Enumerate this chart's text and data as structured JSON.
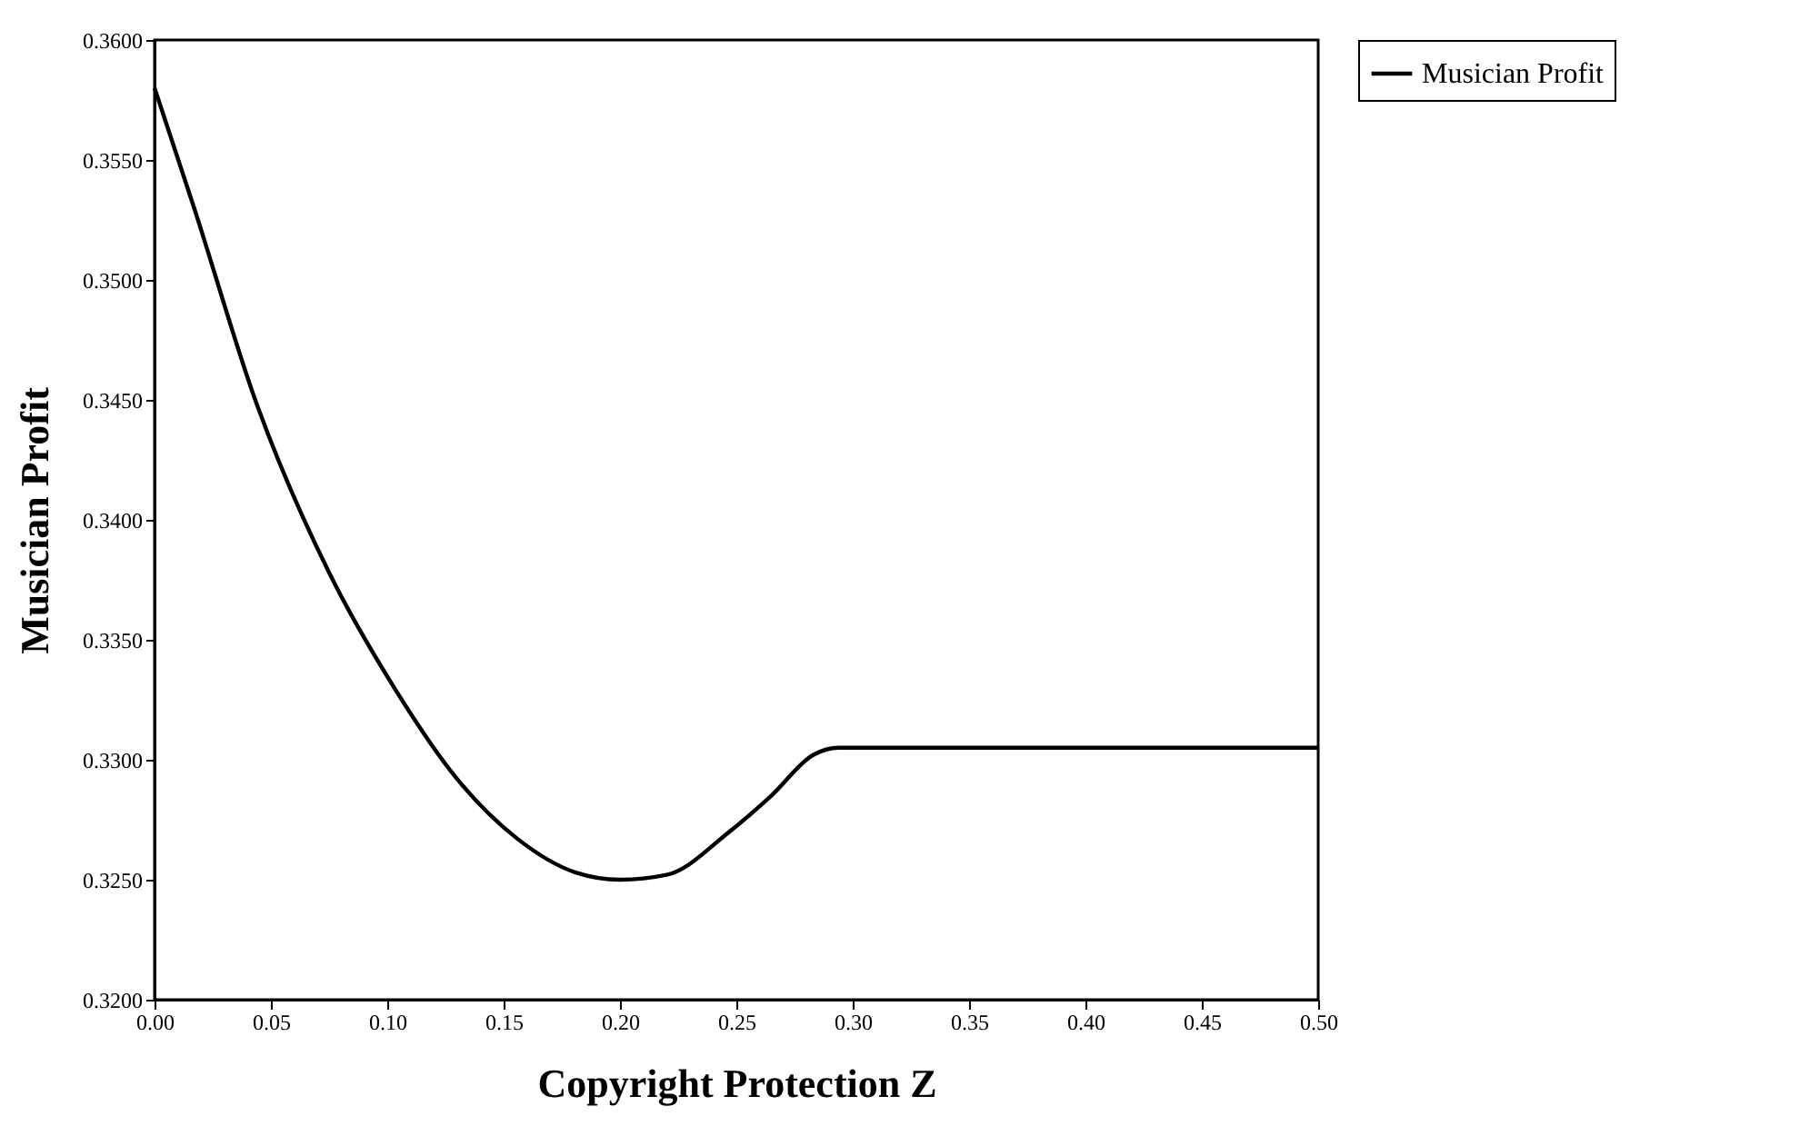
{
  "chart_data": {
    "type": "line",
    "xlabel": "Copyright Protection Z",
    "ylabel": "Musician Profit",
    "series": [
      {
        "name": "Musician Profit",
        "color": "#000000",
        "x": [
          0,
          0.017,
          0.044,
          0.075,
          0.103,
          0.13,
          0.156,
          0.181,
          0.2,
          0.22,
          0.247,
          0.265,
          0.283,
          0.294,
          0.35,
          0.4,
          0.45,
          0.5
        ],
        "values": [
          0.358,
          0.353,
          0.3448,
          0.3378,
          0.333,
          0.3292,
          0.3267,
          0.3253,
          0.325,
          0.3252,
          0.327,
          0.3285,
          0.3302,
          0.3305,
          0.3305,
          0.3305,
          0.3305,
          0.3305
        ]
      }
    ],
    "xlim": [
      0,
      0.5
    ],
    "ylim": [
      0.32,
      0.36
    ],
    "xticks": [
      {
        "value": 0,
        "label": "0.00"
      },
      {
        "value": 0.05,
        "label": "0.05"
      },
      {
        "value": 0.1,
        "label": "0.10"
      },
      {
        "value": 0.15,
        "label": "0.15"
      },
      {
        "value": 0.2,
        "label": "0.20"
      },
      {
        "value": 0.25,
        "label": "0.25"
      },
      {
        "value": 0.3,
        "label": "0.30"
      },
      {
        "value": 0.35,
        "label": "0.35"
      },
      {
        "value": 0.4,
        "label": "0.40"
      },
      {
        "value": 0.45,
        "label": "0.45"
      },
      {
        "value": 0.5,
        "label": "0.50"
      }
    ],
    "yticks": [
      {
        "value": 0.32,
        "label": "0.3200"
      },
      {
        "value": 0.325,
        "label": "0.3250"
      },
      {
        "value": 0.33,
        "label": "0.3300"
      },
      {
        "value": 0.335,
        "label": "0.3350"
      },
      {
        "value": 0.34,
        "label": "0.3400"
      },
      {
        "value": 0.345,
        "label": "0.3450"
      },
      {
        "value": 0.35,
        "label": "0.3500"
      },
      {
        "value": 0.355,
        "label": "0.3550"
      },
      {
        "value": 0.36,
        "label": "0.3600"
      }
    ],
    "grid": false,
    "legend": "right",
    "marker": "none",
    "line_style": "solid"
  }
}
